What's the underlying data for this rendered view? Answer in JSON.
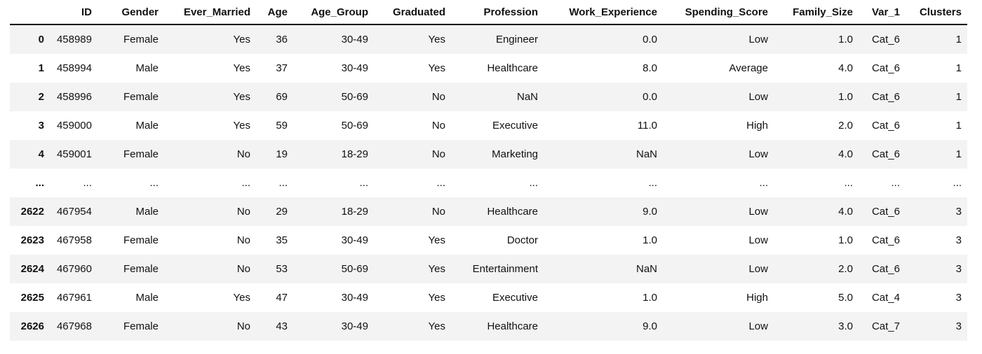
{
  "table": {
    "index_header": "",
    "columns": [
      "ID",
      "Gender",
      "Ever_Married",
      "Age",
      "Age_Group",
      "Graduated",
      "Profession",
      "Work_Experience",
      "Spending_Score",
      "Family_Size",
      "Var_1",
      "Clusters"
    ],
    "rows": [
      {
        "index": "0",
        "cells": [
          "458989",
          "Female",
          "Yes",
          "36",
          "30-49",
          "Yes",
          "Engineer",
          "0.0",
          "Low",
          "1.0",
          "Cat_6",
          "1"
        ]
      },
      {
        "index": "1",
        "cells": [
          "458994",
          "Male",
          "Yes",
          "37",
          "30-49",
          "Yes",
          "Healthcare",
          "8.0",
          "Average",
          "4.0",
          "Cat_6",
          "1"
        ]
      },
      {
        "index": "2",
        "cells": [
          "458996",
          "Female",
          "Yes",
          "69",
          "50-69",
          "No",
          "NaN",
          "0.0",
          "Low",
          "1.0",
          "Cat_6",
          "1"
        ]
      },
      {
        "index": "3",
        "cells": [
          "459000",
          "Male",
          "Yes",
          "59",
          "50-69",
          "No",
          "Executive",
          "11.0",
          "High",
          "2.0",
          "Cat_6",
          "1"
        ]
      },
      {
        "index": "4",
        "cells": [
          "459001",
          "Female",
          "No",
          "19",
          "18-29",
          "No",
          "Marketing",
          "NaN",
          "Low",
          "4.0",
          "Cat_6",
          "1"
        ]
      },
      {
        "index": "...",
        "cells": [
          "...",
          "...",
          "...",
          "...",
          "...",
          "...",
          "...",
          "...",
          "...",
          "...",
          "...",
          "..."
        ]
      },
      {
        "index": "2622",
        "cells": [
          "467954",
          "Male",
          "No",
          "29",
          "18-29",
          "No",
          "Healthcare",
          "9.0",
          "Low",
          "4.0",
          "Cat_6",
          "3"
        ]
      },
      {
        "index": "2623",
        "cells": [
          "467958",
          "Female",
          "No",
          "35",
          "30-49",
          "Yes",
          "Doctor",
          "1.0",
          "Low",
          "1.0",
          "Cat_6",
          "3"
        ]
      },
      {
        "index": "2624",
        "cells": [
          "467960",
          "Female",
          "No",
          "53",
          "50-69",
          "Yes",
          "Entertainment",
          "NaN",
          "Low",
          "2.0",
          "Cat_6",
          "3"
        ]
      },
      {
        "index": "2625",
        "cells": [
          "467961",
          "Male",
          "Yes",
          "47",
          "30-49",
          "Yes",
          "Executive",
          "1.0",
          "High",
          "5.0",
          "Cat_4",
          "3"
        ]
      },
      {
        "index": "2626",
        "cells": [
          "467968",
          "Female",
          "No",
          "43",
          "30-49",
          "Yes",
          "Healthcare",
          "9.0",
          "Low",
          "3.0",
          "Cat_7",
          "3"
        ]
      }
    ]
  },
  "colors": {
    "row_stripe": "#f3f3f3",
    "header_border": "#000000",
    "text": "#111111",
    "background": "#ffffff"
  }
}
